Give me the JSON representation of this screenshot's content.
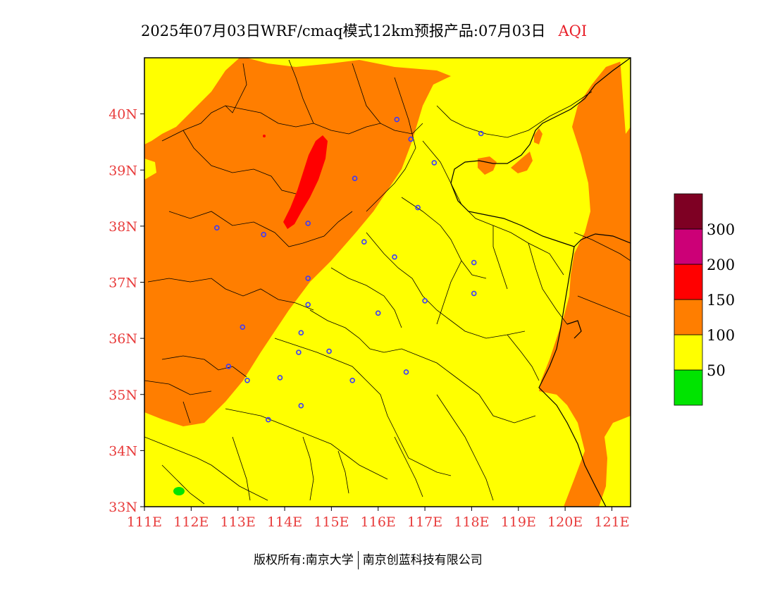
{
  "title": {
    "main": "2025年07月03日WRF/cmaq模式12km预报产品:07月03日",
    "variable": "AQI"
  },
  "axes": {
    "lat_labels": [
      "33N",
      "34N",
      "35N",
      "36N",
      "37N",
      "38N",
      "39N",
      "40N"
    ],
    "lon_labels": [
      "111E",
      "112E",
      "113E",
      "114E",
      "115E",
      "116E",
      "117E",
      "118E",
      "119E",
      "120E",
      "121E"
    ],
    "lat_range": [
      33,
      41
    ],
    "lon_range": [
      111,
      121.4
    ],
    "label_color": "#e83c3c"
  },
  "legend": {
    "levels": [
      {
        "color": "#00e400"
      },
      {
        "color": "#ffff00",
        "label": "50"
      },
      {
        "color": "#ff7e00",
        "label": "100"
      },
      {
        "color": "#ff0000",
        "label": "150"
      },
      {
        "color": "#cc0077",
        "label": "200"
      },
      {
        "color": "#7e0023",
        "label": "300"
      }
    ],
    "labels": [
      "50",
      "100",
      "150",
      "200",
      "300"
    ]
  },
  "map_colors": {
    "good": "#00e400",
    "moderate": "#ffff00",
    "unhealthy_sensitive": "#ff7e00",
    "unhealthy": "#ff0000",
    "station": "#3a3aff",
    "border": "#000000"
  },
  "stations": [
    {
      "lon": 116.4,
      "lat": 39.9
    },
    {
      "lon": 116.7,
      "lat": 39.55
    },
    {
      "lon": 117.2,
      "lat": 39.13
    },
    {
      "lon": 118.2,
      "lat": 39.65
    },
    {
      "lon": 115.5,
      "lat": 38.85
    },
    {
      "lon": 116.85,
      "lat": 38.33
    },
    {
      "lon": 112.55,
      "lat": 37.97
    },
    {
      "lon": 113.55,
      "lat": 37.85
    },
    {
      "lon": 114.5,
      "lat": 38.05
    },
    {
      "lon": 115.7,
      "lat": 37.72
    },
    {
      "lon": 116.35,
      "lat": 37.45
    },
    {
      "lon": 118.05,
      "lat": 37.35
    },
    {
      "lon": 114.5,
      "lat": 37.07
    },
    {
      "lon": 114.5,
      "lat": 36.6
    },
    {
      "lon": 116.0,
      "lat": 36.45
    },
    {
      "lon": 117.0,
      "lat": 36.67
    },
    {
      "lon": 118.05,
      "lat": 36.8
    },
    {
      "lon": 113.1,
      "lat": 36.2
    },
    {
      "lon": 114.35,
      "lat": 36.1
    },
    {
      "lon": 114.3,
      "lat": 35.75
    },
    {
      "lon": 114.95,
      "lat": 35.77
    },
    {
      "lon": 112.8,
      "lat": 35.5
    },
    {
      "lon": 113.2,
      "lat": 35.25
    },
    {
      "lon": 113.9,
      "lat": 35.3
    },
    {
      "lon": 115.45,
      "lat": 35.25
    },
    {
      "lon": 116.6,
      "lat": 35.4
    },
    {
      "lon": 114.35,
      "lat": 34.8
    },
    {
      "lon": 113.65,
      "lat": 34.55
    }
  ],
  "copyright": {
    "left": "版权所有:南京大学",
    "right": "南京创蓝科技有限公司"
  }
}
